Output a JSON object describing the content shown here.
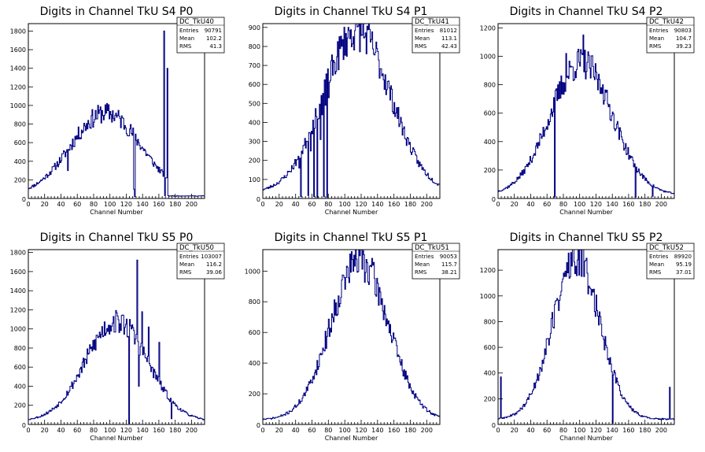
{
  "colors": {
    "histogram": "#000080",
    "frame": "#000000",
    "background": "#ffffff"
  },
  "chart_data": [
    {
      "type": "bar",
      "title": "Digits in Channel TkU S4 P0",
      "xlabel": "Channel Number",
      "xlim": [
        0,
        216
      ],
      "xticks": [
        0,
        20,
        40,
        60,
        80,
        100,
        120,
        140,
        160,
        180,
        200
      ],
      "ylim": [
        0,
        1880
      ],
      "yticks": [
        200,
        400,
        600,
        800,
        1000,
        1200,
        1400,
        1600,
        1800
      ],
      "stats": {
        "name": "DC_TkU40",
        "entries": "90791",
        "mean": "102.2",
        "rms": "41.3"
      },
      "shape": {
        "center": 95,
        "sigma": 43,
        "peak": 890,
        "baseline": 30,
        "cutoff": 170,
        "seed": 11
      },
      "spikes": [
        {
          "x": 48,
          "y": 300
        },
        {
          "x": 129,
          "y": 100
        },
        {
          "x": 166,
          "y": 1800
        },
        {
          "x": 170,
          "y": 1400
        }
      ],
      "dips": [
        {
          "x": 130,
          "y": 20
        },
        {
          "x": 167,
          "y": 30
        }
      ]
    },
    {
      "type": "bar",
      "title": "Digits in Channel TkU S4 P1",
      "xlabel": "Channel Number",
      "xlim": [
        0,
        216
      ],
      "xticks": [
        0,
        20,
        40,
        60,
        80,
        100,
        120,
        140,
        160,
        180,
        200
      ],
      "ylim": [
        0,
        920
      ],
      "yticks": [
        100,
        200,
        300,
        400,
        500,
        600,
        700,
        800,
        900
      ],
      "stats": {
        "name": "DC_TkU41",
        "entries": "81012",
        "mean": "113.1",
        "rms": "42.43"
      },
      "shape": {
        "center": 115,
        "sigma": 41,
        "peak": 850,
        "baseline": 30,
        "cutoff": 216,
        "seed": 23
      },
      "spikes": [
        {
          "x": 44,
          "y": 160
        },
        {
          "x": 58,
          "y": 250
        },
        {
          "x": 70,
          "y": 310
        },
        {
          "x": 72,
          "y": 440
        },
        {
          "x": 76,
          "y": 490
        },
        {
          "x": 80,
          "y": 530
        }
      ],
      "dips": [
        {
          "x": 46,
          "y": 10
        },
        {
          "x": 55,
          "y": 15
        },
        {
          "x": 62,
          "y": 10
        },
        {
          "x": 66,
          "y": 5
        },
        {
          "x": 74,
          "y": 10
        },
        {
          "x": 78,
          "y": 5
        }
      ]
    },
    {
      "type": "bar",
      "title": "Digits in Channel TkU S4 P2",
      "xlabel": "Channel Number",
      "xlim": [
        0,
        216
      ],
      "xticks": [
        0,
        20,
        40,
        60,
        80,
        100,
        120,
        140,
        160,
        180,
        200
      ],
      "ylim": [
        0,
        1230
      ],
      "yticks": [
        200,
        400,
        600,
        800,
        1000,
        1200
      ],
      "stats": {
        "name": "DC_TkU42",
        "entries": "90803",
        "mean": "104.7",
        "rms": "39.23"
      },
      "shape": {
        "center": 102,
        "sigma": 38,
        "peak": 930,
        "baseline": 25,
        "cutoff": 216,
        "seed": 37
      },
      "spikes": [
        {
          "x": 70,
          "y": 760
        },
        {
          "x": 83,
          "y": 1020
        },
        {
          "x": 104,
          "y": 1150
        },
        {
          "x": 128,
          "y": 800
        }
      ],
      "dips": [
        {
          "x": 69,
          "y": 10
        },
        {
          "x": 168,
          "y": 10
        },
        {
          "x": 189,
          "y": 15
        }
      ]
    },
    {
      "type": "bar",
      "title": "Digits in Channel TkU S5 P0",
      "xlabel": "Channel Number",
      "xlim": [
        0,
        216
      ],
      "xticks": [
        0,
        20,
        40,
        60,
        80,
        100,
        120,
        140,
        160,
        180,
        200
      ],
      "ylim": [
        0,
        1830
      ],
      "yticks": [
        200,
        400,
        600,
        800,
        1000,
        1200,
        1400,
        1600,
        1800
      ],
      "stats": {
        "name": "DC_TkU50",
        "entries": "103007",
        "mean": "116.2",
        "rms": "39.06"
      },
      "shape": {
        "center": 108,
        "sigma": 38,
        "peak": 1040,
        "baseline": 35,
        "cutoff": 216,
        "seed": 53
      },
      "spikes": [
        {
          "x": 124,
          "y": 1100
        },
        {
          "x": 133,
          "y": 1720
        },
        {
          "x": 139,
          "y": 1180
        },
        {
          "x": 147,
          "y": 1020
        },
        {
          "x": 160,
          "y": 860
        }
      ],
      "dips": [
        {
          "x": 123,
          "y": 10
        },
        {
          "x": 135,
          "y": 400
        },
        {
          "x": 175,
          "y": 60
        }
      ]
    },
    {
      "type": "bar",
      "title": "Digits in Channel TkU S5 P1",
      "xlabel": "Channel Number",
      "xlim": [
        0,
        216
      ],
      "xticks": [
        0,
        20,
        40,
        60,
        80,
        100,
        120,
        140,
        160,
        180,
        200
      ],
      "ylim": [
        0,
        1140
      ],
      "yticks": [
        200,
        400,
        600,
        800,
        1000
      ],
      "stats": {
        "name": "DC_TkU51",
        "entries": "90053",
        "mean": "115.7",
        "rms": "38.21"
      },
      "shape": {
        "center": 118,
        "sigma": 35,
        "peak": 1040,
        "baseline": 30,
        "cutoff": 216,
        "seed": 71
      },
      "spikes": [
        {
          "x": 118,
          "y": 1100
        }
      ],
      "dips": []
    },
    {
      "type": "bar",
      "title": "Digits in Channel TkU S5 P2",
      "xlabel": "Channel Number",
      "xlim": [
        0,
        216
      ],
      "xticks": [
        0,
        20,
        40,
        60,
        80,
        100,
        120,
        140,
        160,
        180,
        200
      ],
      "ylim": [
        0,
        1360
      ],
      "yticks": [
        200,
        400,
        600,
        800,
        1000,
        1200
      ],
      "stats": {
        "name": "DC_TkU52",
        "entries": "89920",
        "mean": "95.19",
        "rms": "37.01"
      },
      "shape": {
        "center": 96,
        "sigma": 29,
        "peak": 1250,
        "baseline": 40,
        "cutoff": 216,
        "seed": 89
      },
      "spikes": [
        {
          "x": 3,
          "y": 370
        },
        {
          "x": 97,
          "y": 1280
        },
        {
          "x": 210,
          "y": 290
        }
      ],
      "dips": [
        {
          "x": 140,
          "y": 10
        }
      ]
    }
  ]
}
